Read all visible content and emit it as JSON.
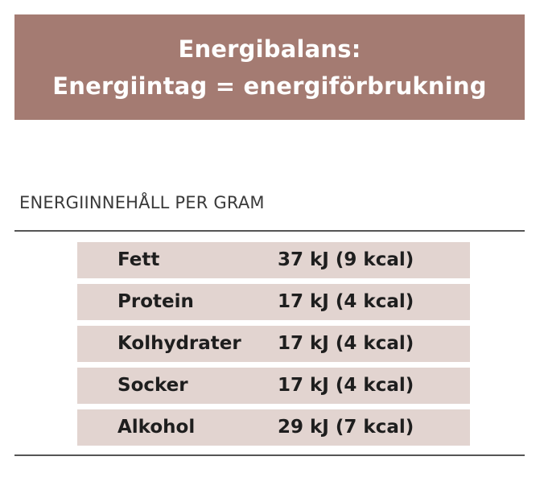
{
  "banner": {
    "line1": "Energibalans:",
    "line2": "Energiintag = energiförbrukning",
    "color": "#a47b72"
  },
  "section": {
    "heading": "ENERGIINNEHÅLL PER GRAM"
  },
  "table": {
    "row_color": "#e2d4d0",
    "rows": [
      {
        "name": "Fett",
        "value": "37 kJ (9 kcal)"
      },
      {
        "name": "Protein",
        "value": "17 kJ (4 kcal)"
      },
      {
        "name": "Kolhydrater",
        "value": "17 kJ (4 kcal)"
      },
      {
        "name": "Socker",
        "value": "17 kJ (4 kcal)"
      },
      {
        "name": "Alkohol",
        "value": "29 kJ (7 kcal)"
      }
    ]
  }
}
